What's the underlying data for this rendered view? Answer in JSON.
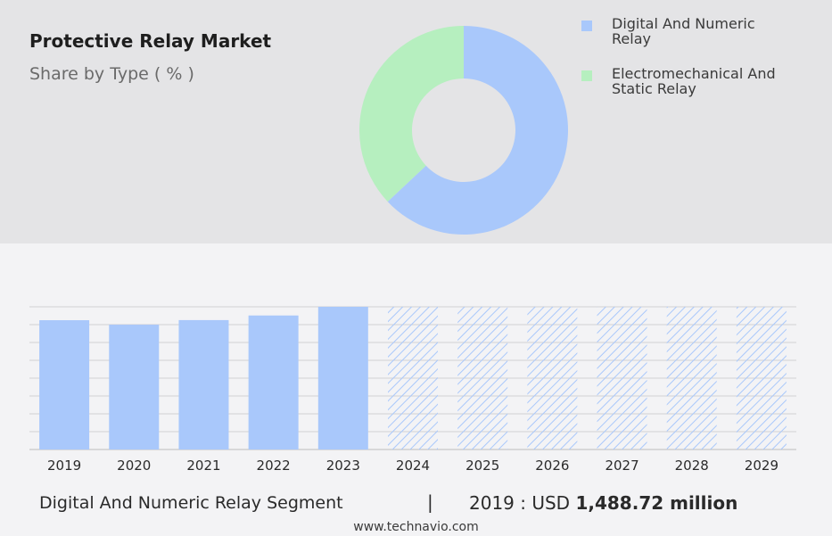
{
  "header": {
    "title": "Protective Relay Market",
    "subtitle": "Share by Type ( % )"
  },
  "legend": [
    {
      "line1": "Digital And Numeric",
      "line2": "Relay",
      "color": "#a9c8fb"
    },
    {
      "line1": "Electromechanical And",
      "line2": "Static Relay",
      "color": "#b6efbf"
    }
  ],
  "chart_data": [
    {
      "type": "pie",
      "variant": "donut",
      "labels": [
        "Digital And Numeric Relay",
        "Electromechanical And Static Relay"
      ],
      "values": [
        63,
        37
      ],
      "colors": [
        "#a9c8fb",
        "#b6efbf"
      ],
      "legend_position": "top-right"
    },
    {
      "type": "bar",
      "categories": [
        "2019",
        "2020",
        "2021",
        "2022",
        "2023",
        "2024",
        "2025",
        "2026",
        "2027",
        "2028",
        "2029"
      ],
      "series": [
        {
          "values": [
            1488.72,
            1437,
            1490,
            1543,
            1643,
            null,
            null,
            null,
            null,
            null,
            null
          ]
        }
      ],
      "forecast_categories": [
        "2024",
        "2025",
        "2026",
        "2027",
        "2028",
        "2029"
      ],
      "bar_color": "#a9c8fb",
      "forecast_pattern": "hatched",
      "ylim": [
        0,
        1643
      ],
      "grid": true,
      "y_tick_labels": false
    }
  ],
  "summary": {
    "segment_label": "Digital And Numeric Relay Segment",
    "divider": "|",
    "year_prefix": "2019 : USD",
    "amount": "1,488.72 million"
  },
  "footer": {
    "site": "www.technavio.com"
  }
}
